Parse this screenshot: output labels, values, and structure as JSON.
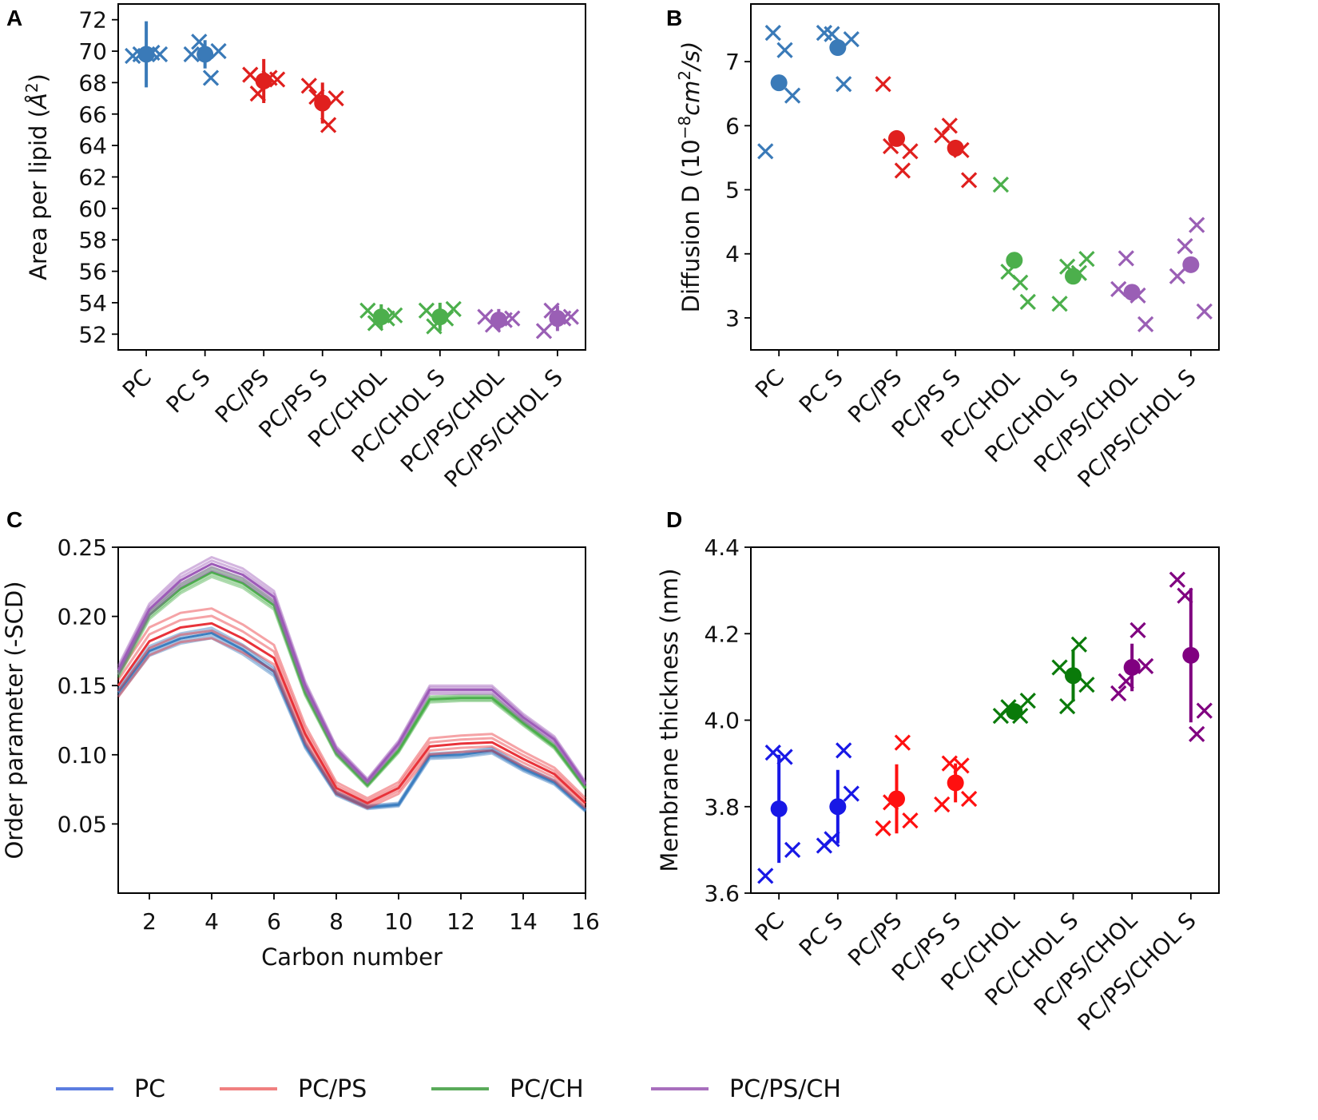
{
  "figure": {
    "legend": [
      {
        "label": "PC",
        "color": "#5c7de0"
      },
      {
        "label": "PC/PS",
        "color": "#f08080"
      },
      {
        "label": "PC/CH",
        "color": "#5aab5a"
      },
      {
        "label": "PC/PS/CH",
        "color": "#a86fbd"
      }
    ]
  },
  "chart_data": [
    {
      "panel": "A",
      "type": "scatter",
      "ylabel": "Area per lipid (Å²)",
      "ylabel_plain": "Area per lipid (",
      "ylabel_unit": "Å",
      "ylabel_sup": "2",
      "ylabel_close": ")",
      "ylim": [
        51,
        73
      ],
      "yticks": [
        52,
        54,
        56,
        58,
        60,
        62,
        64,
        66,
        68,
        70,
        72
      ],
      "categories": [
        "PC",
        "PC S",
        "PC/PS",
        "PC/PS S",
        "PC/CHOL",
        "PC/CHOL S",
        "PC/PS/CHOL",
        "PC/PS/CHOL S"
      ],
      "colors": [
        "#3a7ab8",
        "#3a7ab8",
        "#e0201e",
        "#e0201e",
        "#4caf4c",
        "#4caf4c",
        "#9a5fb5",
        "#9a5fb5"
      ],
      "means": [
        69.8,
        69.8,
        68.1,
        66.7,
        53.1,
        53.1,
        52.9,
        53.0
      ],
      "errors": [
        2.1,
        0.9,
        1.4,
        1.3,
        0.8,
        0.9,
        0.7,
        0.8
      ],
      "replicates": [
        [
          69.7,
          69.8,
          69.9,
          69.8
        ],
        [
          69.8,
          70.6,
          68.3,
          70.0
        ],
        [
          68.5,
          67.3,
          68.3,
          68.2
        ],
        [
          67.8,
          67.1,
          65.3,
          67.0
        ],
        [
          53.5,
          52.7,
          53.0,
          53.2
        ],
        [
          53.5,
          52.5,
          53.0,
          53.6
        ],
        [
          53.1,
          52.6,
          52.9,
          53.0
        ],
        [
          52.2,
          53.5,
          53.0,
          53.1
        ]
      ]
    },
    {
      "panel": "B",
      "type": "scatter",
      "ylabel_plain": "Diffusion D (10",
      "ylabel_sup": "−8",
      "ylabel_unit": "cm",
      "ylabel_sup2": "2",
      "ylabel_close": "/s)",
      "ylim": [
        2.5,
        7.9
      ],
      "yticks": [
        3,
        4,
        5,
        6,
        7
      ],
      "categories": [
        "PC",
        "PC S",
        "PC/PS",
        "PC/PS S",
        "PC/CHOL",
        "PC/CHOL S",
        "PC/PS/CHOL",
        "PC/PS/CHOL S"
      ],
      "colors": [
        "#3a7ab8",
        "#3a7ab8",
        "#e0201e",
        "#e0201e",
        "#4caf4c",
        "#4caf4c",
        "#9a5fb5",
        "#9a5fb5"
      ],
      "means": [
        6.67,
        7.22,
        5.8,
        5.65,
        3.9,
        3.65,
        3.4,
        3.83
      ],
      "replicates": [
        [
          5.6,
          7.45,
          7.18,
          6.47
        ],
        [
          7.45,
          7.43,
          6.65,
          7.35
        ],
        [
          6.65,
          5.68,
          5.3,
          5.6
        ],
        [
          5.85,
          6.0,
          5.62,
          5.15
        ],
        [
          5.08,
          3.72,
          3.55,
          3.25
        ],
        [
          3.22,
          3.8,
          3.7,
          3.92
        ],
        [
          3.45,
          3.93,
          3.35,
          2.9
        ],
        [
          3.65,
          4.12,
          4.45,
          3.1
        ]
      ]
    },
    {
      "panel": "C",
      "type": "line",
      "xlabel": "Carbon number",
      "ylabel": "Order parameter (-SCD)",
      "xlim": [
        1,
        16
      ],
      "ylim": [
        0.0,
        0.25
      ],
      "xticks": [
        2,
        4,
        6,
        8,
        10,
        12,
        14,
        16
      ],
      "yticks": [
        0.05,
        0.1,
        0.15,
        0.2,
        0.25
      ],
      "x": [
        1,
        2,
        3,
        4,
        5,
        6,
        7,
        8,
        9,
        10,
        11,
        12,
        13,
        14,
        15,
        16
      ],
      "series": [
        {
          "name": "PC",
          "color": "#3d7fc0",
          "band": 0.004,
          "values": [
            0.145,
            0.175,
            0.184,
            0.188,
            0.176,
            0.16,
            0.107,
            0.072,
            0.062,
            0.064,
            0.099,
            0.1,
            0.103,
            0.09,
            0.08,
            0.06
          ]
        },
        {
          "name": "PC/PS",
          "color": "#e8333a",
          "band": 0.011,
          "values": [
            0.15,
            0.182,
            0.192,
            0.195,
            0.184,
            0.17,
            0.115,
            0.076,
            0.065,
            0.076,
            0.106,
            0.108,
            0.109,
            0.097,
            0.086,
            0.065
          ]
        },
        {
          "name": "PC/CH",
          "color": "#4caf4c",
          "band": 0.003,
          "values": [
            0.158,
            0.201,
            0.22,
            0.232,
            0.224,
            0.208,
            0.145,
            0.101,
            0.078,
            0.103,
            0.14,
            0.141,
            0.141,
            0.123,
            0.106,
            0.076
          ]
        },
        {
          "name": "PC/PS/CH",
          "color": "#9d5cb8",
          "band": 0.004,
          "values": [
            0.161,
            0.205,
            0.226,
            0.238,
            0.23,
            0.214,
            0.15,
            0.104,
            0.081,
            0.108,
            0.147,
            0.147,
            0.147,
            0.127,
            0.111,
            0.079
          ]
        }
      ]
    },
    {
      "panel": "D",
      "type": "scatter",
      "ylabel": "Membrane thickness (nm)",
      "ylim": [
        3.6,
        4.4
      ],
      "yticks": [
        3.6,
        3.8,
        4.0,
        4.2,
        4.4
      ],
      "categories": [
        "PC",
        "PC S",
        "PC/PS",
        "PC/PS S",
        "PC/CHOL",
        "PC/CHOL S",
        "PC/PS/CHOL",
        "PC/PS/CHOL S"
      ],
      "colors": [
        "#1818e6",
        "#1818e6",
        "#ff1010",
        "#ff1010",
        "#0a7a0a",
        "#0a7a0a",
        "#800080",
        "#800080"
      ],
      "means": [
        3.795,
        3.8,
        3.818,
        3.855,
        4.02,
        4.103,
        4.122,
        4.15
      ],
      "errors": [
        0.125,
        0.085,
        0.08,
        0.045,
        0.015,
        0.06,
        0.055,
        0.155
      ],
      "replicates": [
        [
          3.64,
          3.925,
          3.915,
          3.7
        ],
        [
          3.71,
          3.725,
          3.93,
          3.83
        ],
        [
          3.75,
          3.81,
          3.948,
          3.768
        ],
        [
          3.805,
          3.9,
          3.895,
          3.818
        ],
        [
          4.01,
          4.03,
          4.01,
          4.045
        ],
        [
          4.122,
          4.032,
          4.175,
          4.082
        ],
        [
          4.062,
          4.09,
          4.208,
          4.125
        ],
        [
          4.325,
          4.288,
          3.968,
          4.022
        ]
      ]
    }
  ]
}
